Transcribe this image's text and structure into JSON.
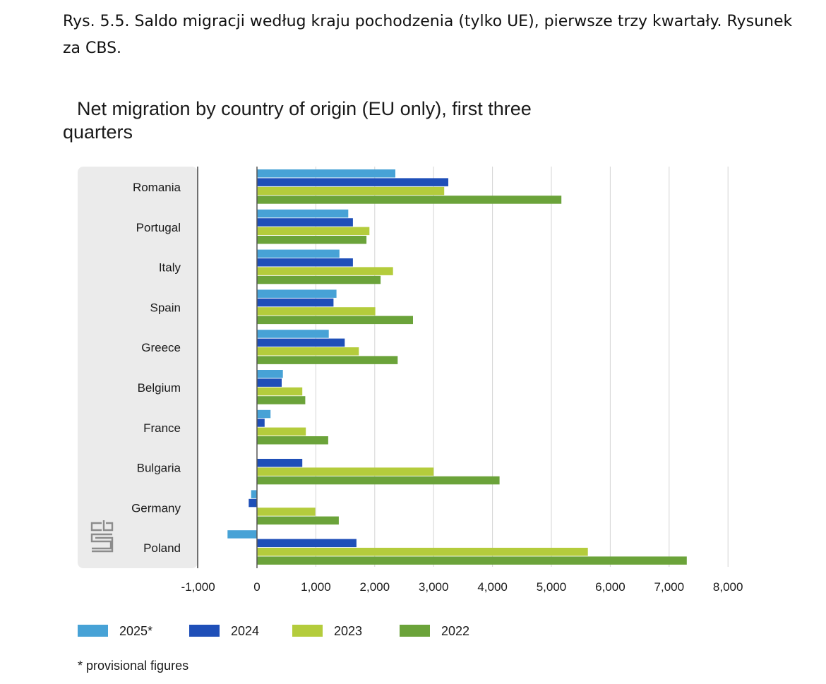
{
  "caption": "Rys. 5.5. Saldo migracji według kraju pochodzenia (tylko UE), pierwsze trzy kwartały. Rysunek za CBS.",
  "logo": {
    "icon": "cbs-logo-icon",
    "text": "cbs"
  },
  "footnote": "* provisional figures",
  "colors": {
    "panel": "#ebebeb",
    "grid": "#d4d4d4",
    "axis": "#555555",
    "text": "#1a1a1a",
    "s2025": "#47a2d6",
    "s2024": "#1f4fb8",
    "s2023": "#b4cc3c",
    "s2022": "#6ba33a",
    "logo": "#8c8c8c"
  },
  "chart_data": {
    "type": "bar",
    "orientation": "horizontal",
    "title": "Net migration by country of origin (EU only), first three quarters",
    "xlabel": "",
    "ylabel": "",
    "xlim": [
      -1000,
      8000
    ],
    "xticks": [
      -1000,
      0,
      1000,
      2000,
      3000,
      4000,
      5000,
      6000,
      7000,
      8000
    ],
    "xtick_labels": [
      "-1,000",
      "0",
      "1,000",
      "2,000",
      "3,000",
      "4,000",
      "5,000",
      "6,000",
      "7,000",
      "8,000"
    ],
    "grid": true,
    "legend_position": "bottom",
    "categories": [
      "Romania",
      "Portugal",
      "Italy",
      "Spain",
      "Greece",
      "Belgium",
      "France",
      "Bulgaria",
      "Germany",
      "Poland"
    ],
    "series": [
      {
        "name": "2025*",
        "color": "#47a2d6",
        "values": [
          2350,
          1550,
          1400,
          1350,
          1220,
          440,
          230,
          null,
          -100,
          -500
        ]
      },
      {
        "name": "2024",
        "color": "#1f4fb8",
        "values": [
          3250,
          1630,
          1630,
          1300,
          1490,
          420,
          130,
          770,
          -140,
          1690
        ]
      },
      {
        "name": "2023",
        "color": "#b4cc3c",
        "values": [
          3180,
          1910,
          2310,
          2010,
          1730,
          770,
          830,
          3000,
          990,
          5620
        ]
      },
      {
        "name": "2022",
        "color": "#6ba33a",
        "values": [
          5170,
          1860,
          2100,
          2650,
          2390,
          820,
          1210,
          4120,
          1390,
          7300
        ]
      }
    ]
  }
}
